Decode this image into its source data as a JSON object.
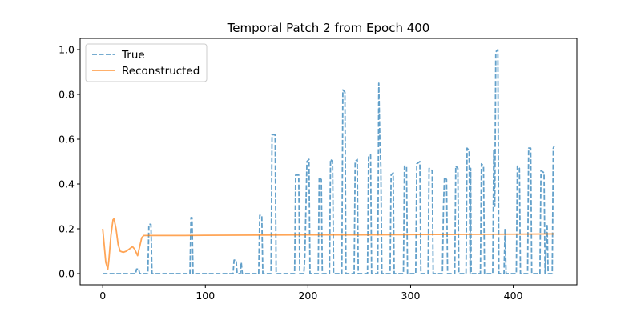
{
  "chart_data": {
    "type": "line",
    "title": "Temporal Patch 2 from Epoch 400",
    "xlabel": "",
    "ylabel": "",
    "xlim": [
      -22,
      462
    ],
    "ylim": [
      -0.05,
      1.05
    ],
    "xticks": [
      0,
      100,
      200,
      300,
      400
    ],
    "yticks": [
      0.0,
      0.2,
      0.4,
      0.6,
      0.8,
      1.0
    ],
    "ytick_labels": [
      "0.0",
      "0.2",
      "0.4",
      "0.6",
      "0.8",
      "1.0"
    ],
    "grid": false,
    "legend_position": "top-left",
    "series": [
      {
        "name": "True",
        "color": "#1f77b4",
        "style": "dashed",
        "points": [
          [
            0,
            0
          ],
          [
            32,
            0
          ],
          [
            33,
            0.02
          ],
          [
            35,
            0.02
          ],
          [
            36,
            0
          ],
          [
            44,
            0
          ],
          [
            45,
            0.22
          ],
          [
            47,
            0.22
          ],
          [
            48,
            0
          ],
          [
            85,
            0
          ],
          [
            86,
            0.25
          ],
          [
            87,
            0.25
          ],
          [
            88,
            0
          ],
          [
            127,
            0
          ],
          [
            128,
            0.06
          ],
          [
            130,
            0.06
          ],
          [
            131,
            0
          ],
          [
            134,
            0
          ],
          [
            135,
            0.05
          ],
          [
            136,
            0
          ],
          [
            152,
            0
          ],
          [
            153,
            0.26
          ],
          [
            155,
            0.26
          ],
          [
            156,
            0
          ],
          [
            164,
            0
          ],
          [
            165,
            0.62
          ],
          [
            168,
            0.62
          ],
          [
            169,
            0
          ],
          [
            187,
            0
          ],
          [
            188,
            0.44
          ],
          [
            191,
            0.44
          ],
          [
            192,
            0
          ],
          [
            196,
            0
          ],
          [
            197,
            0.08
          ],
          [
            199,
            0.5
          ],
          [
            201,
            0.51
          ],
          [
            202,
            0
          ],
          [
            210,
            0
          ],
          [
            211,
            0.43
          ],
          [
            213,
            0.42
          ],
          [
            214,
            0
          ],
          [
            221,
            0
          ],
          [
            222,
            0.51
          ],
          [
            224,
            0.5
          ],
          [
            225,
            0
          ],
          [
            233,
            0
          ],
          [
            234,
            0.82
          ],
          [
            236,
            0.81
          ],
          [
            237,
            0
          ],
          [
            245,
            0
          ],
          [
            246,
            0.5
          ],
          [
            248,
            0.51
          ],
          [
            249,
            0
          ],
          [
            258,
            0
          ],
          [
            259,
            0.52
          ],
          [
            261,
            0.53
          ],
          [
            262,
            0
          ],
          [
            268,
            0
          ],
          [
            269,
            0.85
          ],
          [
            270,
            0.6
          ],
          [
            271,
            0.48
          ],
          [
            272,
            0
          ],
          [
            280,
            0
          ],
          [
            281,
            0.44
          ],
          [
            283,
            0.45
          ],
          [
            284,
            0
          ],
          [
            293,
            0
          ],
          [
            294,
            0.48
          ],
          [
            296,
            0.48
          ],
          [
            297,
            0
          ],
          [
            305,
            0
          ],
          [
            306,
            0.49
          ],
          [
            309,
            0.5
          ],
          [
            310,
            0
          ],
          [
            317,
            0
          ],
          [
            318,
            0.47
          ],
          [
            321,
            0.46
          ],
          [
            322,
            0
          ],
          [
            331,
            0
          ],
          [
            332,
            0.3
          ],
          [
            333,
            0.43
          ],
          [
            335,
            0.42
          ],
          [
            336,
            0
          ],
          [
            343,
            0
          ],
          [
            344,
            0.48
          ],
          [
            346,
            0.47
          ],
          [
            347,
            0
          ],
          [
            354,
            0
          ],
          [
            355,
            0.56
          ],
          [
            357,
            0.55
          ],
          [
            358,
            0
          ],
          [
            358.5,
            0.47
          ],
          [
            359,
            0
          ],
          [
            368,
            0
          ],
          [
            369,
            0.49
          ],
          [
            371,
            0.48
          ],
          [
            372,
            0
          ],
          [
            380,
            0
          ],
          [
            381,
            0.55
          ],
          [
            382,
            0.3
          ],
          [
            383,
            0.99
          ],
          [
            385,
            1.0
          ],
          [
            386,
            0
          ],
          [
            391,
            0
          ],
          [
            392,
            0.2
          ],
          [
            393,
            0
          ],
          [
            403,
            0
          ],
          [
            404,
            0.48
          ],
          [
            406,
            0.47
          ],
          [
            407,
            0
          ],
          [
            414,
            0
          ],
          [
            415,
            0.56
          ],
          [
            417,
            0.56
          ],
          [
            418,
            0
          ],
          [
            426,
            0
          ],
          [
            427,
            0.46
          ],
          [
            430,
            0.45
          ],
          [
            431,
            0
          ],
          [
            433,
            0.22
          ],
          [
            434,
            0
          ],
          [
            438,
            0
          ],
          [
            439,
            0.56
          ],
          [
            440,
            0.57
          ]
        ]
      },
      {
        "name": "Reconstructed",
        "color": "#ff7f0e",
        "style": "solid",
        "points": [
          [
            0,
            0.2
          ],
          [
            1,
            0.15
          ],
          [
            3,
            0.05
          ],
          [
            5,
            0.02
          ],
          [
            6,
            0.06
          ],
          [
            8,
            0.17
          ],
          [
            10,
            0.24
          ],
          [
            11,
            0.245
          ],
          [
            13,
            0.2
          ],
          [
            15,
            0.13
          ],
          [
            17,
            0.1
          ],
          [
            20,
            0.095
          ],
          [
            23,
            0.1
          ],
          [
            26,
            0.11
          ],
          [
            29,
            0.12
          ],
          [
            31,
            0.11
          ],
          [
            33,
            0.09
          ],
          [
            34,
            0.08
          ],
          [
            36,
            0.12
          ],
          [
            38,
            0.16
          ],
          [
            40,
            0.17
          ],
          [
            45,
            0.17
          ],
          [
            60,
            0.17
          ],
          [
            80,
            0.17
          ],
          [
            100,
            0.171
          ],
          [
            150,
            0.172
          ],
          [
            200,
            0.173
          ],
          [
            250,
            0.173
          ],
          [
            300,
            0.174
          ],
          [
            350,
            0.175
          ],
          [
            400,
            0.176
          ],
          [
            440,
            0.177
          ]
        ]
      }
    ]
  }
}
